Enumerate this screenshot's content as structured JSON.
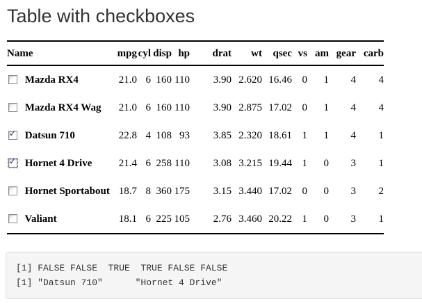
{
  "title": "Table with checkboxes",
  "table": {
    "columns": [
      "Name",
      "mpg",
      "cyl",
      "disp",
      "hp",
      "drat",
      "wt",
      "qsec",
      "vs",
      "am",
      "gear",
      "carb"
    ],
    "rows": [
      {
        "name": "Mazda RX4",
        "checked": false,
        "focused": false,
        "values": [
          "21.0",
          "6",
          "160",
          "110",
          "3.90",
          "2.620",
          "16.46",
          "0",
          "1",
          "4",
          "4"
        ]
      },
      {
        "name": "Mazda RX4 Wag",
        "checked": false,
        "focused": false,
        "values": [
          "21.0",
          "6",
          "160",
          "110",
          "3.90",
          "2.875",
          "17.02",
          "0",
          "1",
          "4",
          "4"
        ]
      },
      {
        "name": "Datsun 710",
        "checked": true,
        "focused": false,
        "values": [
          "22.8",
          "4",
          "108",
          "93",
          "3.85",
          "2.320",
          "18.61",
          "1",
          "1",
          "4",
          "1"
        ]
      },
      {
        "name": "Hornet 4 Drive",
        "checked": true,
        "focused": true,
        "values": [
          "21.4",
          "6",
          "258",
          "110",
          "3.08",
          "3.215",
          "19.44",
          "1",
          "0",
          "3",
          "1"
        ]
      },
      {
        "name": "Hornet Sportabout",
        "checked": false,
        "focused": false,
        "values": [
          "18.7",
          "8",
          "360",
          "175",
          "3.15",
          "3.440",
          "17.02",
          "0",
          "0",
          "3",
          "2"
        ]
      },
      {
        "name": "Valiant",
        "checked": false,
        "focused": false,
        "values": [
          "18.1",
          "6",
          "225",
          "105",
          "2.76",
          "3.460",
          "20.22",
          "1",
          "0",
          "3",
          "1"
        ]
      }
    ]
  },
  "output": {
    "lines": [
      "[1] FALSE FALSE  TRUE  TRUE FALSE FALSE",
      "[1] \"Datsun 710\"      \"Hornet 4 Drive\""
    ]
  }
}
